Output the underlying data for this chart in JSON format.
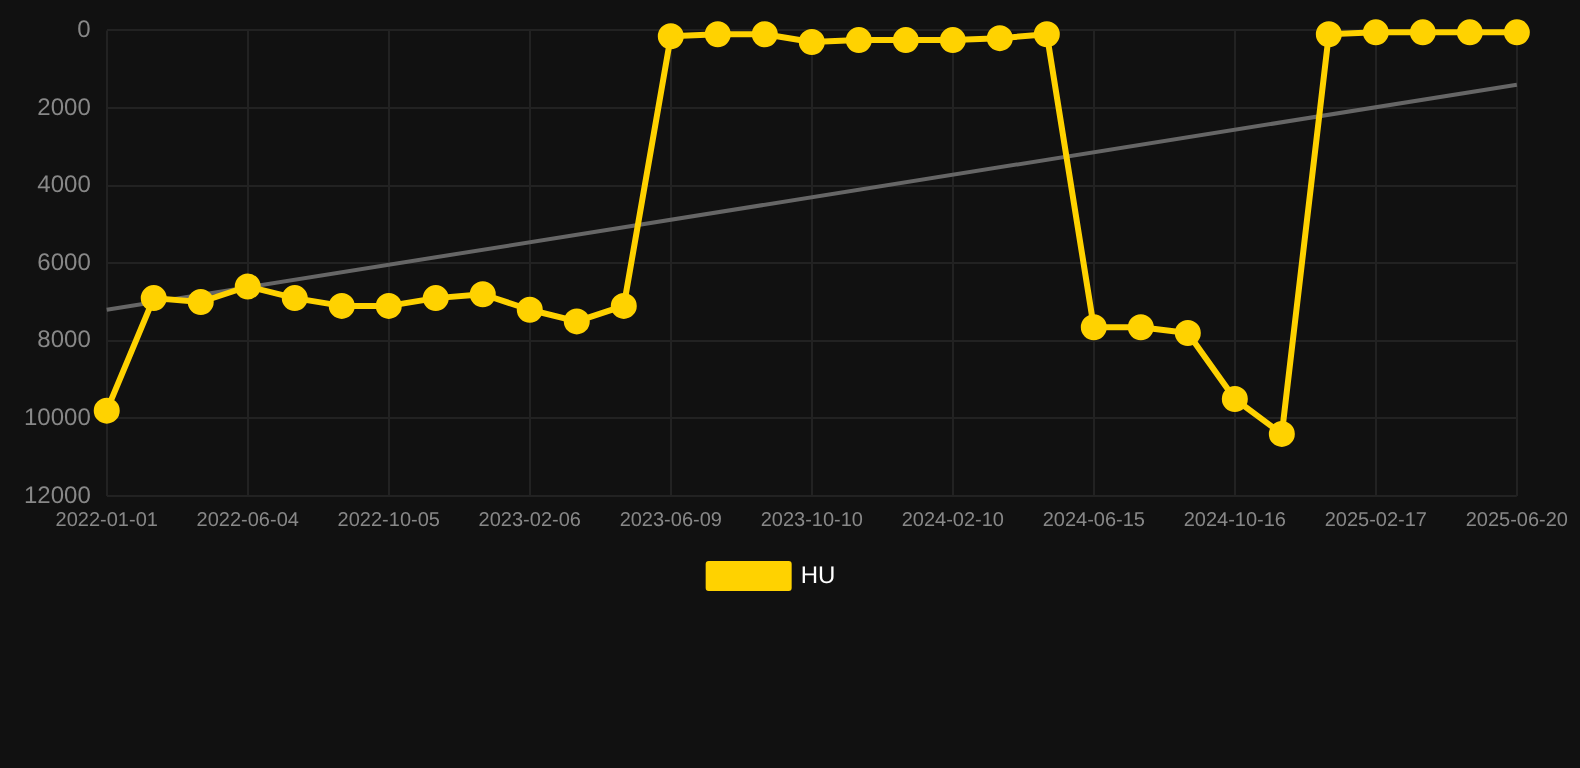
{
  "chart_data": {
    "type": "line",
    "categories": [
      "2022-01-01",
      null,
      null,
      "2022-06-04",
      null,
      null,
      "2022-10-05",
      null,
      null,
      "2023-02-06",
      null,
      null,
      "2023-06-09",
      null,
      null,
      "2023-10-10",
      null,
      null,
      "2024-02-10",
      null,
      null,
      "2024-06-15",
      null,
      null,
      "2024-10-16",
      null,
      null,
      "2025-02-17",
      null,
      null,
      "2025-06-20"
    ],
    "series": [
      {
        "name": "HU",
        "color": "#ffd200",
        "values": [
          9800,
          6900,
          7000,
          6600,
          6900,
          7100,
          7100,
          6900,
          6800,
          7200,
          7500,
          7100,
          150,
          100,
          100,
          300,
          250,
          250,
          250,
          200,
          100,
          7650,
          7650,
          7800,
          9500,
          10400,
          100,
          50,
          50,
          50,
          50
        ]
      },
      {
        "type": "line",
        "color": "#666666",
        "values": [
          7200,
          null,
          null,
          null,
          null,
          null,
          null,
          null,
          null,
          null,
          null,
          null,
          null,
          null,
          null,
          null,
          null,
          null,
          null,
          null,
          null,
          null,
          null,
          null,
          null,
          null,
          null,
          null,
          null,
          null,
          1400
        ],
        "marker": "none"
      }
    ],
    "ylim": [
      12000,
      0
    ],
    "yticks": [
      0,
      2000,
      4000,
      6000,
      8000,
      10000,
      12000
    ],
    "grid": true,
    "legend": "bottom",
    "marker": "circle",
    "line_style": "solid"
  }
}
